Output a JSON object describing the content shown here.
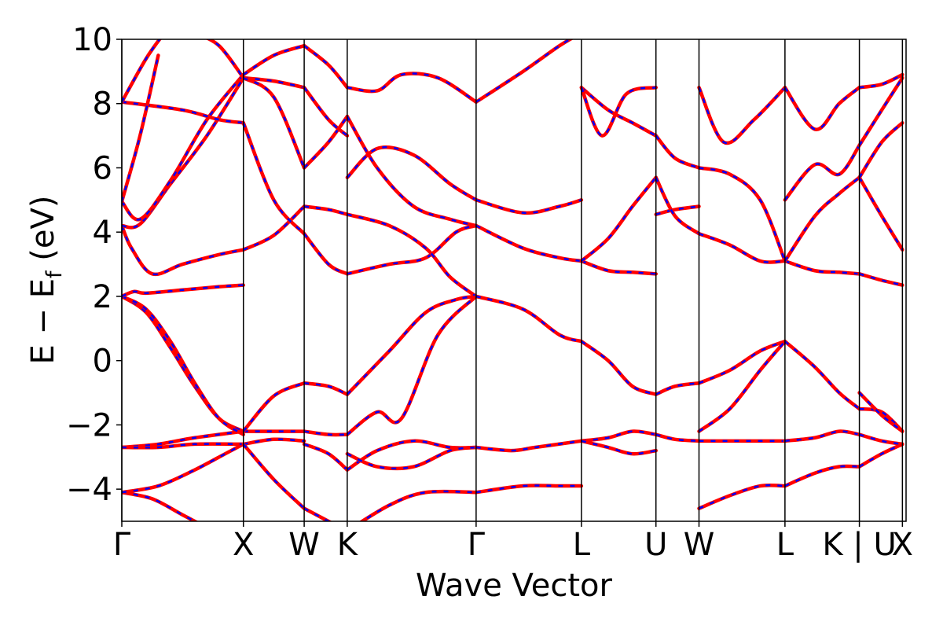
{
  "chart_data": {
    "type": "line",
    "xlabel": "Wave Vector",
    "ylabel_main": "E − E",
    "ylabel_sub": "f",
    "ylabel_unit": " (eV)",
    "ylim": [
      -5,
      10
    ],
    "xlim": [
      0,
      6.45
    ],
    "y_ticks": [
      -4,
      -2,
      0,
      2,
      4,
      6,
      8,
      10
    ],
    "y_tick_labels": [
      "−4",
      "−2",
      "0",
      "2",
      "4",
      "6",
      "8",
      "10"
    ],
    "kpoints": [
      {
        "label": "Γ",
        "x": 0.0
      },
      {
        "label": "X",
        "x": 1.0
      },
      {
        "label": "W",
        "x": 1.5
      },
      {
        "label": "K",
        "x": 1.854
      },
      {
        "label": "Γ",
        "x": 2.914
      },
      {
        "label": "L",
        "x": 3.78
      },
      {
        "label": "U",
        "x": 4.393
      },
      {
        "label": "W",
        "x": 4.747
      },
      {
        "label": "L",
        "x": 5.454
      },
      {
        "label": "K | U",
        "x": 6.066
      },
      {
        "label": "X",
        "x": 6.42
      }
    ],
    "grid": false,
    "styles": {
      "series_a": {
        "color": "#ff0000",
        "dash": "solid"
      },
      "series_b": {
        "color": "#0000ff",
        "dash": "dashed"
      }
    },
    "bands": [
      {
        "x": [
          0,
          0.25,
          0.5,
          0.75,
          1.0
        ],
        "y": [
          -4.1,
          -4.3,
          -4.8,
          -5.3,
          -5.8
        ]
      },
      {
        "x": [
          0,
          0.3,
          0.6,
          0.85,
          1.0
        ],
        "y": [
          -4.1,
          -3.9,
          -3.4,
          -2.9,
          -2.6
        ]
      },
      {
        "x": [
          0,
          0.3,
          0.6,
          1.0
        ],
        "y": [
          -2.7,
          -2.6,
          -2.4,
          -2.2
        ]
      },
      {
        "x": [
          0,
          0.3,
          0.6,
          1.0
        ],
        "y": [
          -2.7,
          -2.7,
          -2.6,
          -2.6
        ]
      },
      {
        "x": [
          0,
          0.2,
          0.4,
          0.6,
          0.8,
          1.0
        ],
        "y": [
          2.0,
          1.5,
          0.4,
          -0.8,
          -1.8,
          -2.2
        ]
      },
      {
        "x": [
          0,
          0.2,
          0.4,
          0.6,
          0.8,
          1.0
        ],
        "y": [
          2.0,
          1.6,
          0.6,
          -0.7,
          -1.8,
          -2.3
        ]
      },
      {
        "x": [
          0,
          0.1,
          0.2,
          0.5,
          0.8,
          1.0
        ],
        "y": [
          2.0,
          2.15,
          2.1,
          2.2,
          2.3,
          2.35
        ]
      },
      {
        "x": [
          0,
          0.08,
          0.25,
          0.5,
          0.8,
          1.0
        ],
        "y": [
          4.2,
          3.5,
          2.7,
          3.0,
          3.3,
          3.45
        ]
      },
      {
        "x": [
          0,
          0.15,
          0.4,
          0.7,
          1.0
        ],
        "y": [
          4.2,
          4.25,
          5.5,
          7.0,
          8.8
        ]
      },
      {
        "x": [
          0,
          0.15,
          0.4,
          0.7,
          1.0
        ],
        "y": [
          4.95,
          4.4,
          5.6,
          7.5,
          8.9
        ]
      },
      {
        "x": [
          0,
          0.5,
          0.8,
          1.0
        ],
        "y": [
          8.05,
          7.8,
          7.5,
          7.4
        ]
      },
      {
        "x": [
          0,
          0.15,
          0.3
        ],
        "y": [
          4.95,
          7.0,
          9.5
        ]
      },
      {
        "x": [
          0,
          0.2,
          0.35
        ],
        "y": [
          8.05,
          9.4,
          10.2
        ]
      },
      {
        "x": [
          0.6,
          0.8,
          1.0
        ],
        "y": [
          10.2,
          9.8,
          8.8
        ]
      },
      {
        "x": [
          1.0,
          1.25,
          1.5
        ],
        "y": [
          -2.2,
          -2.2,
          -2.2
        ]
      },
      {
        "x": [
          1.0,
          1.25,
          1.5
        ],
        "y": [
          -2.6,
          -2.45,
          -2.5
        ]
      },
      {
        "x": [
          1.0,
          1.25,
          1.5
        ],
        "y": [
          -2.6,
          -3.7,
          -4.6
        ]
      },
      {
        "x": [
          1.0,
          1.25,
          1.5
        ],
        "y": [
          -2.2,
          -1.1,
          -0.7
        ]
      },
      {
        "x": [
          1.0,
          1.25,
          1.5
        ],
        "y": [
          3.45,
          3.9,
          4.8
        ]
      },
      {
        "x": [
          1.0,
          1.25,
          1.5
        ],
        "y": [
          8.8,
          8.7,
          8.5
        ]
      },
      {
        "x": [
          1.0,
          1.25,
          1.5
        ],
        "y": [
          8.9,
          9.5,
          9.8
        ]
      },
      {
        "x": [
          1.0,
          1.25,
          1.5
        ],
        "y": [
          7.4,
          5.0,
          3.95
        ]
      },
      {
        "x": [
          1.0,
          1.25,
          1.5
        ],
        "y": [
          8.8,
          8.2,
          6.0
        ]
      },
      {
        "x": [
          1.5,
          1.7,
          1.854
        ],
        "y": [
          -2.2,
          -2.3,
          -2.3
        ]
      },
      {
        "x": [
          1.5,
          1.7,
          1.854
        ],
        "y": [
          -0.7,
          -0.8,
          -1.05
        ]
      },
      {
        "x": [
          1.5,
          1.7,
          1.854
        ],
        "y": [
          -2.6,
          -2.9,
          -3.4
        ]
      },
      {
        "x": [
          1.5,
          1.7,
          1.854
        ],
        "y": [
          -4.6,
          -5.0,
          -5.3
        ]
      },
      {
        "x": [
          1.5,
          1.7,
          1.854
        ],
        "y": [
          3.95,
          3.0,
          2.7
        ]
      },
      {
        "x": [
          1.5,
          1.7,
          1.854
        ],
        "y": [
          4.8,
          4.7,
          4.55
        ]
      },
      {
        "x": [
          1.5,
          1.7,
          1.854
        ],
        "y": [
          6.0,
          6.8,
          7.6
        ]
      },
      {
        "x": [
          1.5,
          1.7,
          1.854
        ],
        "y": [
          8.5,
          7.5,
          7.0
        ]
      },
      {
        "x": [
          1.5,
          1.7,
          1.854
        ],
        "y": [
          9.8,
          9.2,
          8.5
        ]
      },
      {
        "x": [
          1.854,
          2.2,
          2.5,
          2.75,
          2.914
        ],
        "y": [
          -1.05,
          0.3,
          1.5,
          1.9,
          2.0
        ]
      },
      {
        "x": [
          1.854,
          2.1,
          2.3,
          2.6,
          2.914
        ],
        "y": [
          -2.3,
          -1.6,
          -1.8,
          0.8,
          2.0
        ]
      },
      {
        "x": [
          1.854,
          2.1,
          2.4,
          2.7,
          2.914
        ],
        "y": [
          -3.4,
          -2.8,
          -2.5,
          -2.7,
          -2.7
        ]
      },
      {
        "x": [
          1.854,
          2.1,
          2.4,
          2.7,
          2.914
        ],
        "y": [
          -2.9,
          -3.3,
          -3.3,
          -2.8,
          -2.7
        ]
      },
      {
        "x": [
          1.854,
          2.2,
          2.5,
          2.914
        ],
        "y": [
          -5.3,
          -4.5,
          -4.1,
          -4.1
        ]
      },
      {
        "x": [
          1.854,
          2.2,
          2.5,
          2.75,
          2.914
        ],
        "y": [
          2.7,
          3.0,
          3.2,
          4.0,
          4.2
        ]
      },
      {
        "x": [
          1.854,
          2.2,
          2.5,
          2.7,
          2.914
        ],
        "y": [
          4.55,
          4.2,
          3.5,
          2.6,
          2.0
        ]
      },
      {
        "x": [
          1.854,
          2.1,
          2.4,
          2.7,
          2.914
        ],
        "y": [
          5.7,
          6.6,
          6.4,
          5.5,
          5.0
        ]
      },
      {
        "x": [
          1.854,
          2.1,
          2.4,
          2.7,
          2.914
        ],
        "y": [
          7.6,
          6.0,
          4.8,
          4.4,
          4.2
        ]
      },
      {
        "x": [
          1.854,
          2.1,
          2.3,
          2.6,
          2.914
        ],
        "y": [
          8.5,
          8.4,
          8.9,
          8.8,
          8.05
        ]
      },
      {
        "x": [
          2.914,
          3.3,
          3.6,
          3.78
        ],
        "y": [
          2.0,
          1.6,
          0.8,
          0.6
        ]
      },
      {
        "x": [
          2.914,
          3.2,
          3.4,
          3.78
        ],
        "y": [
          -2.7,
          -2.8,
          -2.7,
          -2.5
        ]
      },
      {
        "x": [
          2.914,
          3.3,
          3.6,
          3.78
        ],
        "y": [
          -4.1,
          -3.9,
          -3.9,
          -3.9
        ]
      },
      {
        "x": [
          2.914,
          3.3,
          3.6,
          3.78
        ],
        "y": [
          4.2,
          3.5,
          3.2,
          3.1
        ]
      },
      {
        "x": [
          2.914,
          3.3,
          3.6,
          3.78
        ],
        "y": [
          5.0,
          4.6,
          4.8,
          5.0
        ]
      },
      {
        "x": [
          2.914,
          3.3,
          3.6,
          3.78
        ],
        "y": [
          8.05,
          9.0,
          9.8,
          10.2
        ]
      },
      {
        "x": [
          3.78,
          4.0,
          4.2,
          4.393
        ],
        "y": [
          0.6,
          0.0,
          -0.8,
          -1.05
        ]
      },
      {
        "x": [
          3.78,
          4.0,
          4.2,
          4.393
        ],
        "y": [
          3.1,
          2.8,
          2.75,
          2.7
        ]
      },
      {
        "x": [
          3.78,
          4.0,
          4.2,
          4.393
        ],
        "y": [
          3.1,
          3.8,
          4.8,
          5.7
        ]
      },
      {
        "x": [
          3.78,
          4.0,
          4.2,
          4.393
        ],
        "y": [
          8.5,
          7.8,
          7.4,
          7.0
        ]
      },
      {
        "x": [
          3.78,
          3.95,
          4.15,
          4.393
        ],
        "y": [
          8.5,
          7.0,
          8.3,
          8.5
        ]
      },
      {
        "x": [
          3.78,
          4.0,
          4.2,
          4.393
        ],
        "y": [
          -2.5,
          -2.4,
          -2.2,
          -2.3
        ]
      },
      {
        "x": [
          3.78,
          4.0,
          4.2,
          4.393
        ],
        "y": [
          -2.5,
          -2.7,
          -2.9,
          -2.8
        ]
      },
      {
        "x": [
          4.393,
          4.55,
          4.747
        ],
        "y": [
          -1.05,
          -0.8,
          -0.7
        ]
      },
      {
        "x": [
          4.393,
          4.55,
          4.747
        ],
        "y": [
          4.55,
          4.7,
          4.8
        ]
      },
      {
        "x": [
          4.393,
          4.55,
          4.747
        ],
        "y": [
          -2.3,
          -2.45,
          -2.5
        ]
      },
      {
        "x": [
          4.393,
          4.55,
          4.747
        ],
        "y": [
          5.7,
          4.5,
          3.95
        ]
      },
      {
        "x": [
          4.393,
          4.55,
          4.747
        ],
        "y": [
          7.0,
          6.3,
          6.0
        ]
      },
      {
        "x": [
          4.747,
          5.0,
          5.25,
          5.454
        ],
        "y": [
          -0.7,
          -0.3,
          0.3,
          0.6
        ]
      },
      {
        "x": [
          4.747,
          5.0,
          5.25,
          5.454
        ],
        "y": [
          -2.2,
          -1.5,
          -0.3,
          0.6
        ]
      },
      {
        "x": [
          4.747,
          5.0,
          5.25,
          5.454
        ],
        "y": [
          3.95,
          3.6,
          3.1,
          3.1
        ]
      },
      {
        "x": [
          4.747,
          5.0,
          5.25,
          5.454
        ],
        "y": [
          6.0,
          5.8,
          5.0,
          3.1
        ]
      },
      {
        "x": [
          4.747,
          4.95,
          5.2,
          5.454
        ],
        "y": [
          8.5,
          6.8,
          7.5,
          8.5
        ]
      },
      {
        "x": [
          4.747,
          5.0,
          5.25,
          5.454
        ],
        "y": [
          -2.5,
          -2.5,
          -2.5,
          -2.5
        ]
      },
      {
        "x": [
          4.747,
          5.0,
          5.25,
          5.454
        ],
        "y": [
          -4.6,
          -4.2,
          -3.9,
          -3.9
        ]
      },
      {
        "x": [
          5.454,
          5.7,
          5.9,
          6.066
        ],
        "y": [
          0.6,
          -0.2,
          -1.0,
          -1.5
        ]
      },
      {
        "x": [
          5.454,
          5.7,
          5.9,
          6.066
        ],
        "y": [
          3.1,
          2.8,
          2.75,
          2.7
        ]
      },
      {
        "x": [
          5.454,
          5.7,
          5.9,
          6.066
        ],
        "y": [
          3.1,
          4.5,
          5.2,
          5.7
        ]
      },
      {
        "x": [
          5.454,
          5.7,
          5.9,
          6.066
        ],
        "y": [
          8.5,
          7.2,
          8.0,
          8.5
        ]
      },
      {
        "x": [
          5.454,
          5.7,
          5.9,
          6.066
        ],
        "y": [
          5.0,
          6.1,
          5.8,
          6.7
        ]
      },
      {
        "x": [
          5.454,
          5.7,
          5.9,
          6.066
        ],
        "y": [
          -2.5,
          -2.4,
          -2.2,
          -2.3
        ]
      },
      {
        "x": [
          5.454,
          5.7,
          5.9,
          6.066
        ],
        "y": [
          -3.9,
          -3.5,
          -3.3,
          -3.3
        ]
      },
      {
        "x": [
          6.066,
          6.25,
          6.42
        ],
        "y": [
          -1.5,
          -1.6,
          -2.2
        ]
      },
      {
        "x": [
          6.066,
          6.25,
          6.42
        ],
        "y": [
          -1.0,
          -1.7,
          -2.2
        ]
      },
      {
        "x": [
          6.066,
          6.25,
          6.42
        ],
        "y": [
          2.7,
          2.5,
          2.35
        ]
      },
      {
        "x": [
          6.066,
          6.25,
          6.42
        ],
        "y": [
          5.7,
          4.5,
          3.45
        ]
      },
      {
        "x": [
          6.066,
          6.25,
          6.42
        ],
        "y": [
          6.7,
          7.8,
          8.8
        ]
      },
      {
        "x": [
          6.066,
          6.25,
          6.42
        ],
        "y": [
          8.5,
          8.6,
          8.9
        ]
      },
      {
        "x": [
          6.066,
          6.25,
          6.42
        ],
        "y": [
          5.7,
          6.8,
          7.4
        ]
      },
      {
        "x": [
          6.066,
          6.25,
          6.42
        ],
        "y": [
          -3.3,
          -2.9,
          -2.6
        ]
      },
      {
        "x": [
          6.066,
          6.25,
          6.42
        ],
        "y": [
          -2.3,
          -2.5,
          -2.6
        ]
      }
    ]
  }
}
